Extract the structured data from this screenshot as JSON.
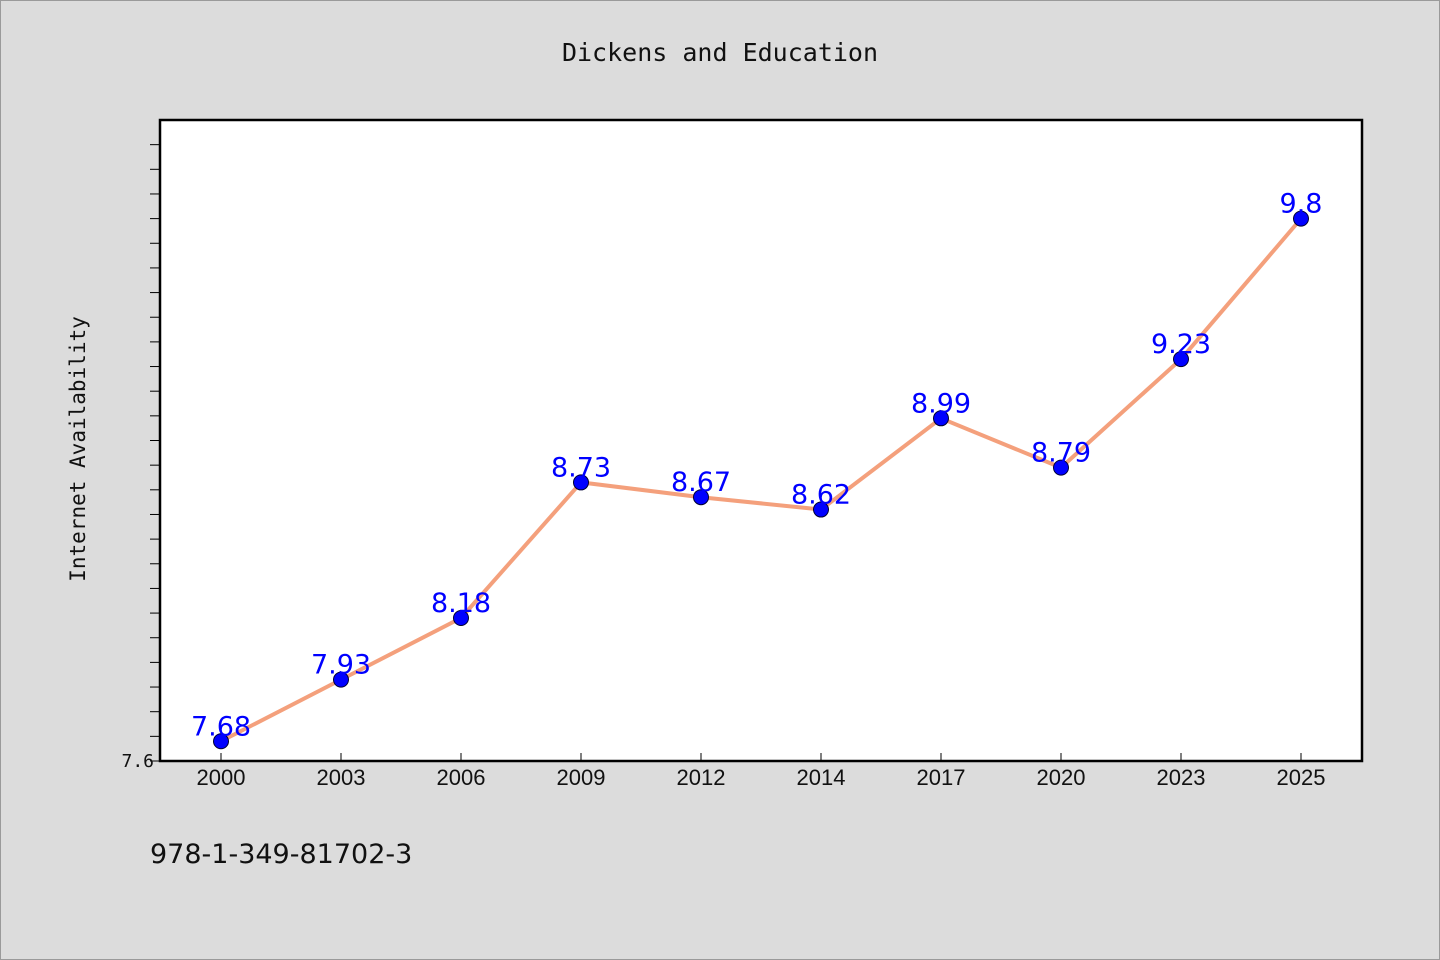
{
  "chart_data": {
    "type": "line",
    "title": "Dickens and Education",
    "xlabel": "",
    "ylabel": "Internet Availability",
    "categories": [
      "2000",
      "2003",
      "2006",
      "2009",
      "2012",
      "2014",
      "2017",
      "2020",
      "2023",
      "2025"
    ],
    "series": [
      {
        "values": [
          7.68,
          7.93,
          8.18,
          8.73,
          8.67,
          8.62,
          8.99,
          8.79,
          9.23,
          9.8
        ]
      }
    ],
    "data_labels": [
      "7.68",
      "7.93",
      "8.18",
      "8.73",
      "8.67",
      "8.62",
      "8.99",
      "8.79",
      "9.23",
      "9.8"
    ],
    "ylim": [
      7.6,
      10.2
    ],
    "ytick_labels": [
      "7.6"
    ],
    "minor_tick_step": 0.1,
    "grid": false,
    "legend": "none",
    "colors": {
      "line": "#f4a07c",
      "marker": "#0000ff",
      "label": "#0000ff",
      "plot_bg": "#ffffff",
      "page_bg": "#dcdcdc"
    }
  },
  "footer": {
    "isbn": "978-1-349-81702-3"
  }
}
